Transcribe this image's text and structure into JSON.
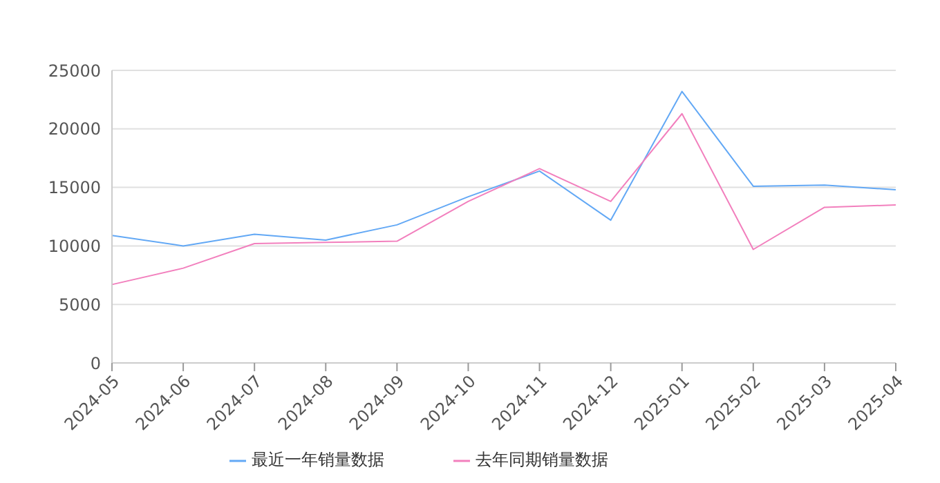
{
  "chart_data": {
    "type": "line",
    "categories": [
      "2024-05",
      "2024-06",
      "2024-07",
      "2024-08",
      "2024-09",
      "2024-10",
      "2024-11",
      "2024-12",
      "2025-01",
      "2025-02",
      "2025-03",
      "2025-04"
    ],
    "series": [
      {
        "name": "最近一年销量数据",
        "color": "#62a8f5",
        "values": [
          10900,
          10000,
          11000,
          10500,
          11800,
          14200,
          16400,
          12200,
          23200,
          15100,
          15200,
          14800
        ]
      },
      {
        "name": "去年同期销量数据",
        "color": "#f27fbd",
        "values": [
          6700,
          8100,
          10200,
          10300,
          10400,
          13800,
          16600,
          13800,
          21300,
          9700,
          13300,
          13500
        ]
      }
    ],
    "ylim": [
      0,
      25000
    ],
    "yticks": [
      0,
      5000,
      10000,
      15000,
      20000,
      25000
    ],
    "grid": "y",
    "legend": "bottom",
    "marker": "none",
    "line_style": "solid"
  }
}
